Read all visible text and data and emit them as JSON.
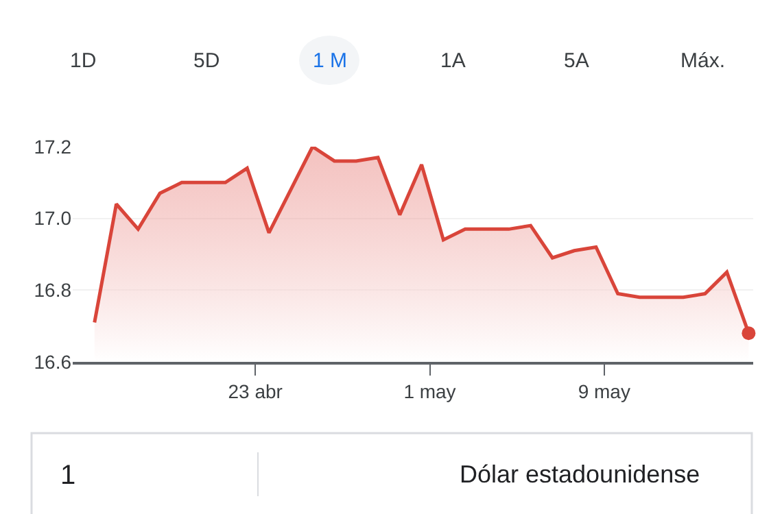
{
  "chart_data": {
    "type": "area",
    "x": [
      "--04-15T15:00",
      "--04-16T15:00",
      "--04-17T15:00",
      "--04-18T15:00",
      "--04-19T15:00",
      "--04-20T15:00",
      "--04-21T15:00",
      "--04-22T15:00",
      "--04-23T15:00",
      "--04-24T15:00",
      "--04-25T15:00",
      "--04-26T15:00",
      "--04-27T15:00",
      "--04-28T15:00",
      "--04-29T15:00",
      "--04-30T15:00",
      "--05-01T15:00",
      "--05-02T15:00",
      "--05-03T15:00",
      "--05-04T15:00",
      "--05-05T15:00",
      "--05-06T15:00",
      "--05-07T15:00",
      "--05-08T15:00",
      "--05-09T15:00",
      "--05-10T15:00",
      "--05-11T15:00",
      "--05-12T15:00",
      "--05-13T15:00",
      "--05-14T15:00",
      "--05-15T15:00"
    ],
    "series": [
      {
        "color": "#d9453a",
        "values": [
          16.71,
          17.04,
          16.97,
          17.07,
          17.1,
          17.1,
          17.1,
          17.14,
          16.96,
          17.08,
          17.2,
          17.16,
          17.16,
          17.17,
          17.01,
          17.15,
          16.94,
          16.97,
          16.97,
          16.97,
          16.98,
          16.89,
          16.91,
          16.92,
          16.79,
          16.78,
          16.78,
          16.78,
          16.79,
          16.85,
          16.68
        ]
      }
    ],
    "xlim": [
      "--04-14T15:00",
      "--05-15T20:00"
    ],
    "xticks": [
      {
        "value": "--04-23",
        "label": "23 abr"
      },
      {
        "value": "--05-01",
        "label": "1 may"
      },
      {
        "value": "--05-09",
        "label": "9 may"
      }
    ],
    "ylim": [
      16.6,
      17.2
    ],
    "yticks": [
      {
        "value": 16.6,
        "label": "16.6"
      },
      {
        "value": 16.8,
        "label": "16.8"
      },
      {
        "value": 17.0,
        "label": "17.0"
      },
      {
        "value": 17.2,
        "label": "17.2"
      }
    ],
    "grid": "y",
    "annotations": [
      "1D",
      "5D",
      "1 M",
      "1A",
      "5A",
      "Máx.",
      "1",
      "Dólar estadounidense"
    ]
  }
}
